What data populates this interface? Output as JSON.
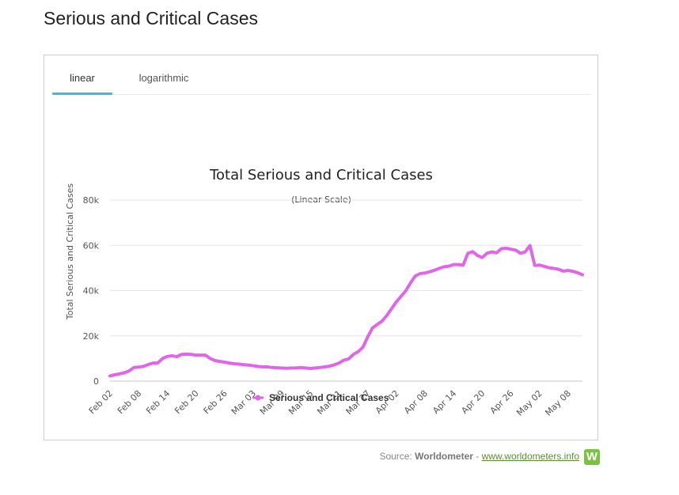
{
  "page": {
    "title": "Serious and Critical Cases"
  },
  "tabs": [
    {
      "label": "linear"
    },
    {
      "label": "logarithmic"
    }
  ],
  "source": {
    "prefix": "Source: ",
    "name": "Worldometer",
    "separator": " - ",
    "link_text": "www.worldometers.info",
    "logo_letter": "W"
  },
  "chart_data": {
    "type": "line",
    "title": "Total Serious and Critical Cases",
    "subtitle": "(Linear Scale)",
    "ylabel": "Total Serious and Critical Cases",
    "xlabel": "",
    "ylim": [
      0,
      80000
    ],
    "y_ticks": [
      0,
      20000,
      40000,
      60000,
      80000
    ],
    "y_tick_labels": [
      "0",
      "20k",
      "40k",
      "60k",
      "80k"
    ],
    "x_tick_labels": [
      "Feb 02",
      "Feb 08",
      "Feb 14",
      "Feb 20",
      "Feb 26",
      "Mar 03",
      "Mar 09",
      "Mar 15",
      "Mar 21",
      "Mar 27",
      "Apr 02",
      "Apr 08",
      "Apr 14",
      "Apr 20",
      "Apr 26",
      "May 02",
      "May 08"
    ],
    "x_tick_days": [
      0,
      6,
      12,
      18,
      24,
      30,
      36,
      42,
      48,
      54,
      60,
      66,
      72,
      78,
      84,
      90,
      96
    ],
    "legend": {
      "position": "bottom-center",
      "label": "Serious and Critical Cases"
    },
    "series": [
      {
        "name": "Serious and Critical Cases",
        "color": "#e066e9",
        "values": [
          2300,
          2800,
          3200,
          3700,
          4500,
          6000,
          6200,
          6500,
          7300,
          8000,
          8000,
          10000,
          10900,
          11200,
          10800,
          11800,
          11900,
          11800,
          11500,
          11500,
          11500,
          10000,
          9100,
          8700,
          8400,
          8000,
          7700,
          7500,
          7300,
          7100,
          6800,
          6500,
          6300,
          6300,
          6000,
          5900,
          5800,
          5700,
          5800,
          5800,
          6000,
          5800,
          5600,
          5800,
          6000,
          6300,
          6600,
          7200,
          8000,
          9300,
          9800,
          11800,
          13000,
          15000,
          19500,
          23500,
          25000,
          26500,
          29000,
          32000,
          35000,
          37500,
          40000,
          43500,
          46500,
          47500,
          47800,
          48300,
          49000,
          49800,
          50500,
          50800,
          51500,
          51500,
          51200,
          56500,
          57200,
          55500,
          54600,
          56500,
          57100,
          56700,
          58500,
          58700,
          58300,
          57900,
          56500,
          57100,
          59900,
          51100,
          51300,
          50700,
          50100,
          49800,
          49400,
          48600,
          48900,
          48500,
          47900,
          47000
        ]
      }
    ]
  }
}
